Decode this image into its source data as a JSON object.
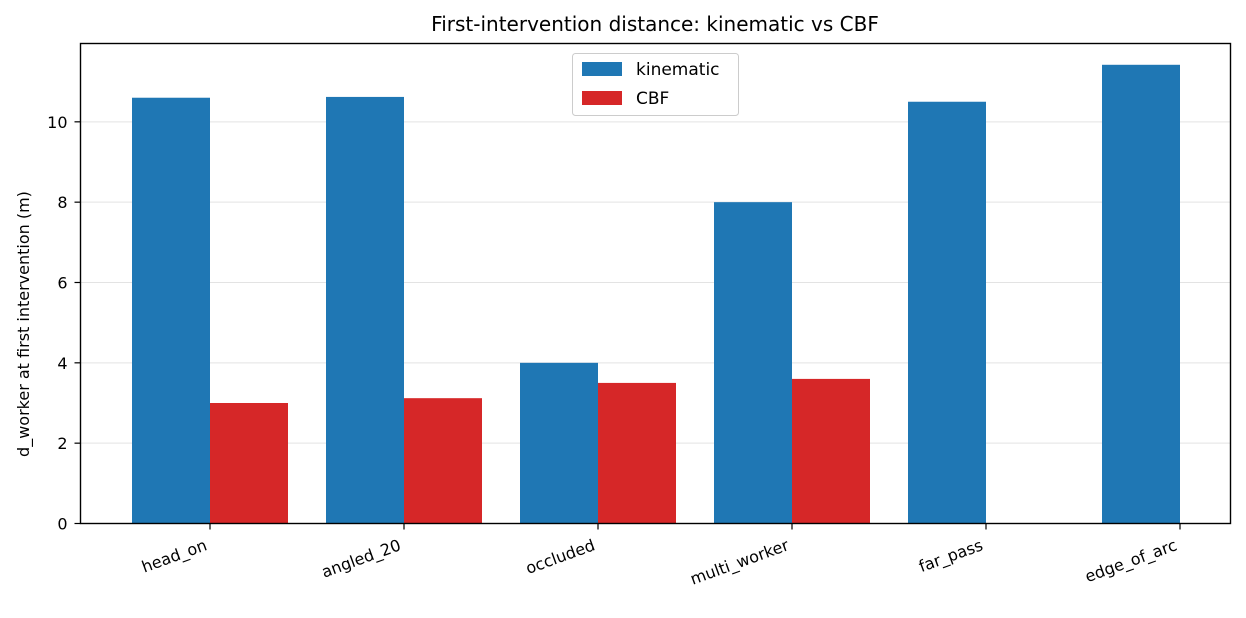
{
  "chart_data": {
    "type": "bar",
    "title": "First-intervention distance: kinematic vs CBF",
    "xlabel": "",
    "ylabel": "d_worker at first intervention (m)",
    "categories": [
      "head_on",
      "angled_20",
      "occluded",
      "multi_worker",
      "far_pass",
      "edge_of_arc"
    ],
    "series": [
      {
        "name": "kinematic",
        "color": "#1f77b4",
        "values": [
          10.6,
          10.62,
          4.0,
          8.0,
          10.5,
          11.42
        ]
      },
      {
        "name": "CBF",
        "color": "#d62728",
        "values": [
          3.0,
          3.12,
          3.5,
          3.6,
          null,
          null
        ]
      }
    ],
    "ylim": [
      0,
      11.95
    ],
    "yticks": [
      0,
      2,
      4,
      6,
      8,
      10
    ],
    "ytick_labels": [
      "0",
      "2",
      "4",
      "6",
      "8",
      "10"
    ],
    "grid": "y",
    "legend_position": "top-center"
  }
}
